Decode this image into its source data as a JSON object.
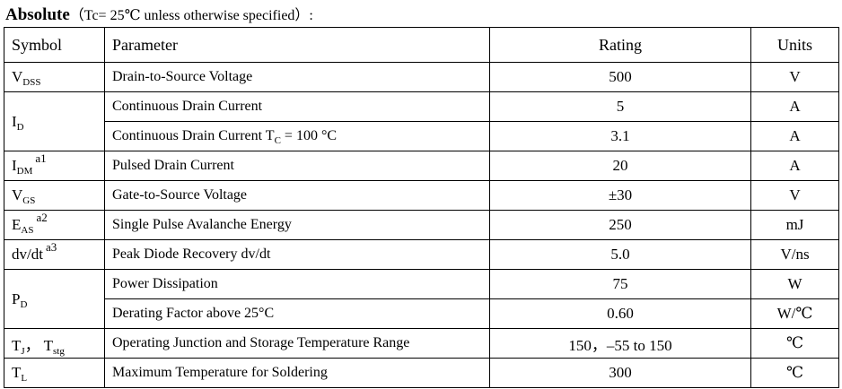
{
  "heading": {
    "title": "Absolute",
    "condition": "（Tc= 25℃  unless otherwise specified）:"
  },
  "table": {
    "headers": {
      "symbol": "Symbol",
      "parameter": "Parameter",
      "rating": "Rating",
      "units": "Units"
    },
    "rows": [
      {
        "symbol": {
          "main": "V",
          "sub": "DSS"
        },
        "parameter": "Drain-to-Source Voltage",
        "rating": "500",
        "units": "V"
      },
      {
        "symbol": {
          "main": "I",
          "sub": "D"
        },
        "parameter": "Continuous Drain Current",
        "rating": "5",
        "units": "A"
      },
      {
        "parameter_main": "Continuous Drain Current T",
        "parameter_sub": "C",
        "parameter_tail": " = 100 °C",
        "rating": "3.1",
        "units": "A"
      },
      {
        "symbol": {
          "main": "I",
          "sub": "DM",
          "sup": "a1"
        },
        "parameter": "Pulsed Drain Current",
        "rating": "20",
        "units": "A"
      },
      {
        "symbol": {
          "main": "V",
          "sub": "GS"
        },
        "parameter": "Gate-to-Source Voltage",
        "rating": "±30",
        "units": "V"
      },
      {
        "symbol": {
          "main": "E",
          "sub": "AS",
          "sup": "a2"
        },
        "parameter": "Single Pulse Avalanche Energy",
        "rating": "250",
        "units": "mJ"
      },
      {
        "symbol": {
          "main": "dv/dt",
          "sup": "a3"
        },
        "parameter": "Peak Diode Recovery dv/dt",
        "rating": "5.0",
        "units": "V/ns"
      },
      {
        "symbol": {
          "main": "P",
          "sub": "D"
        },
        "parameter": "Power Dissipation",
        "rating": "75",
        "units": "W"
      },
      {
        "parameter": "Derating Factor above 25°C",
        "rating": "0.60",
        "units": "W/℃"
      },
      {
        "symbol": {
          "main": "T",
          "sub": "J",
          "sep": "，  T",
          "sub2": "stg"
        },
        "parameter": "Operating Junction and Storage Temperature Range",
        "rating": "150，–55 to 150",
        "units": "℃"
      },
      {
        "symbol": {
          "main": "T",
          "sub": "L"
        },
        "parameter": "Maximum Temperature for Soldering",
        "rating": "300",
        "units": "℃"
      }
    ]
  }
}
